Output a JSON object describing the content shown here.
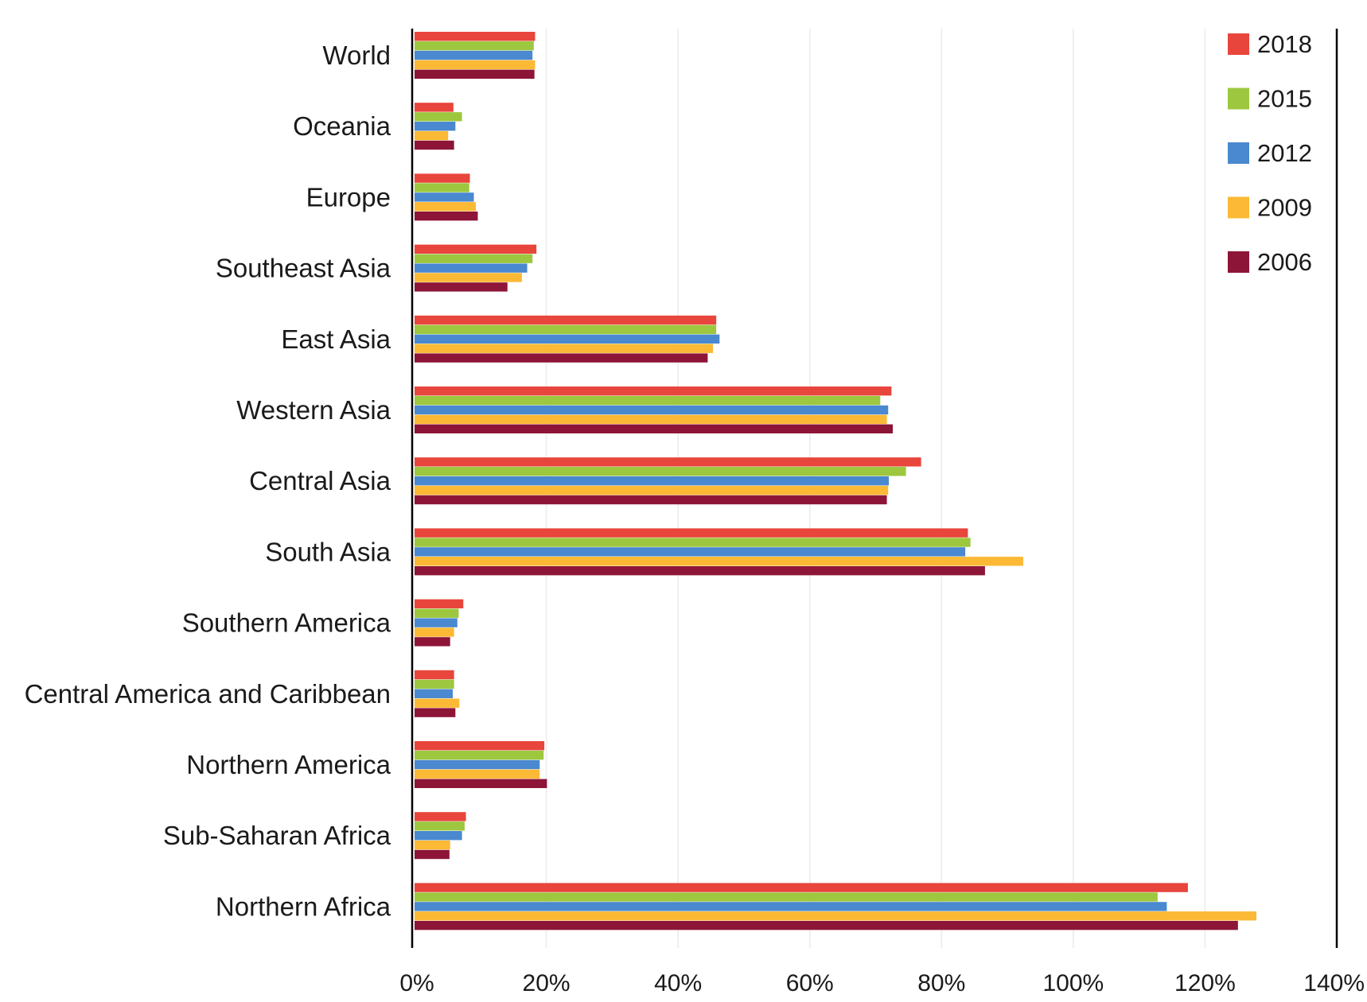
{
  "chart_data": {
    "type": "bar",
    "orientation": "horizontal",
    "categories": [
      "World",
      "Oceania",
      "Europe",
      "Southeast Asia",
      "East Asia",
      "Western Asia",
      "Central Asia",
      "South Asia",
      "Southern America",
      "Central America and Caribbean",
      "Northern America",
      "Sub-Saharan Africa",
      "Northern Africa"
    ],
    "series": [
      {
        "name": "2018",
        "color": "#e8453c",
        "values": [
          18.3,
          5.9,
          8.4,
          18.5,
          45.8,
          72.4,
          76.9,
          84.0,
          7.4,
          6.0,
          19.7,
          7.8,
          117.4
        ]
      },
      {
        "name": "2015",
        "color": "#9dc73f",
        "values": [
          18.1,
          7.2,
          8.3,
          17.9,
          45.8,
          70.7,
          74.6,
          84.4,
          6.7,
          6.0,
          19.6,
          7.6,
          112.8
        ]
      },
      {
        "name": "2012",
        "color": "#4a88d0",
        "values": [
          17.9,
          6.2,
          9.0,
          17.1,
          46.3,
          71.9,
          72.0,
          83.6,
          6.5,
          5.8,
          19.0,
          7.2,
          114.2
        ]
      },
      {
        "name": "2009",
        "color": "#fbb935",
        "values": [
          18.3,
          5.1,
          9.3,
          16.3,
          45.3,
          71.7,
          71.9,
          92.4,
          6.0,
          6.8,
          19.0,
          5.4,
          127.8
        ]
      },
      {
        "name": "2006",
        "color": "#8d1538",
        "values": [
          18.2,
          6.0,
          9.6,
          14.1,
          44.5,
          72.6,
          71.7,
          86.6,
          5.4,
          6.2,
          20.1,
          5.3,
          125.0
        ]
      }
    ],
    "xlim": [
      0,
      140
    ],
    "xticks": [
      0,
      20,
      40,
      60,
      80,
      100,
      120,
      140
    ],
    "xtick_labels": [
      "0%",
      "20%",
      "40%",
      "60%",
      "80%",
      "100%",
      "120%",
      "140%"
    ],
    "grid": "vertical",
    "legend_position": "top-right",
    "title": "",
    "xlabel": "",
    "ylabel": ""
  }
}
